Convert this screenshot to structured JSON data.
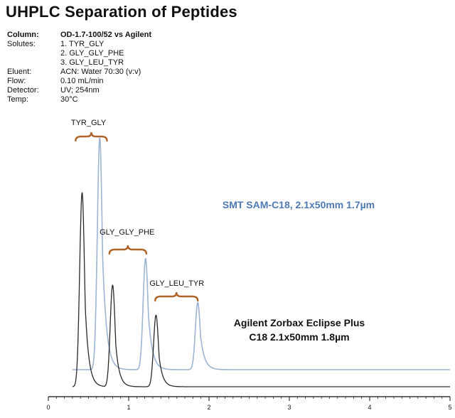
{
  "title": "UHPLC Separation of Peptides",
  "conditions": {
    "column_label": "Column:",
    "column_value": "OD-1.7-100/52 vs Agilent",
    "solutes_label": "Solutes:",
    "solutes": [
      "1. TYR_GLY",
      "2. GLY_GLY_PHE",
      "3. GLY_LEU_TYR"
    ],
    "eluent_label": "Eluent:",
    "eluent_value": "ACN: Water 70:30 (v:v)",
    "flow_label": "Flow:",
    "flow_value": "0.10 mL/min",
    "detector_label": "Detector:",
    "detector_value": "UV; 254nm",
    "temp_label": "Temp:",
    "temp_value": "30°C"
  },
  "chart_data": {
    "type": "line",
    "title": "UHPLC Separation of Peptides",
    "xlabel": "",
    "ylabel": "",
    "xlim": [
      0,
      5
    ],
    "x_ticks": [
      "0",
      "1",
      "2",
      "3",
      "4",
      "5"
    ],
    "colors": {
      "smt": "#9db4d2",
      "agilent": "#2a2a2a",
      "brace": "#b0642a",
      "smt_label": "#4f79b3"
    },
    "series": [
      {
        "name": "SMT SAM-C18, 2.1x50mm 1.7µm",
        "label_lines": [
          "SMT SAM-C18, 2.1x50mm 1.7µm"
        ],
        "peaks": [
          {
            "compound": "TYR_GLY",
            "time": 0.64,
            "height": 1.0
          },
          {
            "compound": "GLY_GLY_PHE",
            "time": 1.21,
            "height": 0.48
          },
          {
            "compound": "GLY_LEU_TYR",
            "time": 1.86,
            "height": 0.29
          }
        ]
      },
      {
        "name": "Agilent Zorbax Eclipse Plus C18 2.1x50mm 1.8µm",
        "label_lines": [
          "Agilent Zorbax Eclipse Plus",
          "C18 2.1x50mm 1.8µm"
        ],
        "peaks": [
          {
            "compound": "TYR_GLY",
            "time": 0.42,
            "height": 0.84
          },
          {
            "compound": "GLY_GLY_PHE",
            "time": 0.8,
            "height": 0.44
          },
          {
            "compound": "GLY_LEU_TYR",
            "time": 1.34,
            "height": 0.31
          }
        ]
      }
    ],
    "annotations": [
      "TYR_GLY",
      "GLY_GLY_PHE",
      "GLY_LEU_TYR"
    ]
  }
}
